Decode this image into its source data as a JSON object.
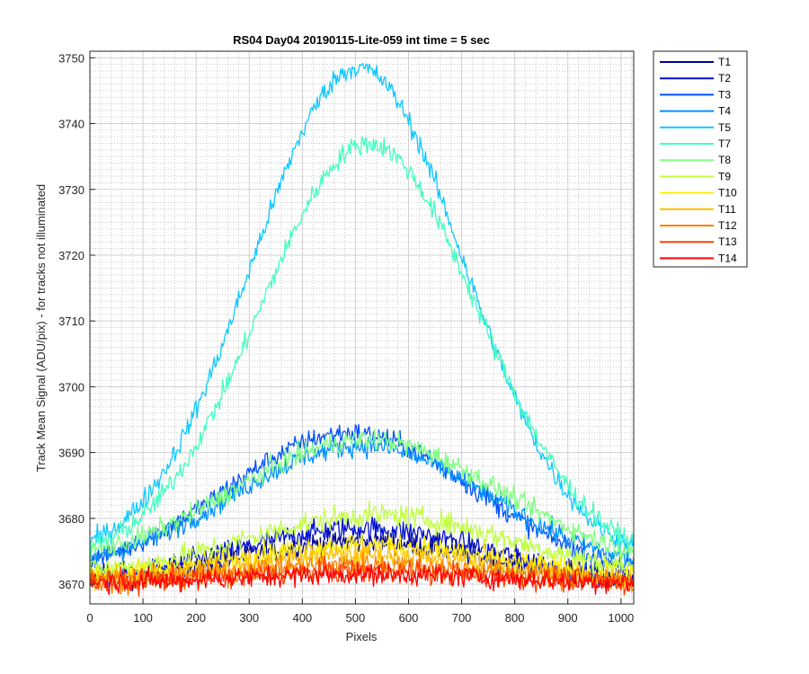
{
  "chart_data": {
    "type": "line",
    "title": "RS04 Day04 20190115-Lite-059 int time = 5 sec",
    "xlabel": "Pixels",
    "ylabel": "Track Mean Signal (ADU/pix) - for tracks not illuminated",
    "xlim": [
      0,
      1024
    ],
    "ylim": [
      3667,
      3751
    ],
    "xticks": [
      0,
      100,
      200,
      300,
      400,
      500,
      600,
      700,
      800,
      900,
      1000
    ],
    "yticks": [
      3670,
      3680,
      3690,
      3700,
      3710,
      3720,
      3730,
      3740,
      3750
    ],
    "grid": true,
    "minor_grid": true,
    "legend_position": "outside-top-right",
    "series": [
      {
        "name": "T1",
        "color": "#00008F",
        "base": 3670.0,
        "peak": 3676.5,
        "center": 512,
        "width": 240,
        "noise": 1.8
      },
      {
        "name": "T2",
        "color": "#0010D0",
        "base": 3670.0,
        "peak": 3678.5,
        "center": 512,
        "width": 240,
        "noise": 1.8
      },
      {
        "name": "T3",
        "color": "#0050FF",
        "base": 3671.0,
        "peak": 3693.0,
        "center": 490,
        "width": 235,
        "noise": 1.6
      },
      {
        "name": "T4",
        "color": "#0090FF",
        "base": 3671.5,
        "peak": 3691.0,
        "center": 510,
        "width": 245,
        "noise": 1.6
      },
      {
        "name": "T5",
        "color": "#10C8FF",
        "base": 3673.0,
        "peak": 3748.5,
        "center": 505,
        "width": 200,
        "noise": 1.6
      },
      {
        "name": "T7",
        "color": "#40FFC0",
        "base": 3673.0,
        "peak": 3737.0,
        "center": 525,
        "width": 205,
        "noise": 1.6
      },
      {
        "name": "T8",
        "color": "#80FF80",
        "base": 3672.5,
        "peak": 3692.0,
        "center": 520,
        "width": 250,
        "noise": 1.6
      },
      {
        "name": "T9",
        "color": "#C0FF40",
        "base": 3671.0,
        "peak": 3680.5,
        "center": 540,
        "width": 250,
        "noise": 1.8
      },
      {
        "name": "T10",
        "color": "#FFF000",
        "base": 3670.5,
        "peak": 3676.0,
        "center": 520,
        "width": 250,
        "noise": 1.8
      },
      {
        "name": "T11",
        "color": "#FFC000",
        "base": 3670.0,
        "peak": 3674.5,
        "center": 520,
        "width": 250,
        "noise": 1.8
      },
      {
        "name": "T12",
        "color": "#FF8000",
        "base": 3670.0,
        "peak": 3673.0,
        "center": 520,
        "width": 250,
        "noise": 1.8
      },
      {
        "name": "T13",
        "color": "#FF4000",
        "base": 3670.0,
        "peak": 3672.0,
        "center": 520,
        "width": 250,
        "noise": 1.8
      },
      {
        "name": "T14",
        "color": "#FF0000",
        "base": 3670.0,
        "peak": 3671.5,
        "center": 520,
        "width": 250,
        "noise": 1.6
      }
    ]
  }
}
